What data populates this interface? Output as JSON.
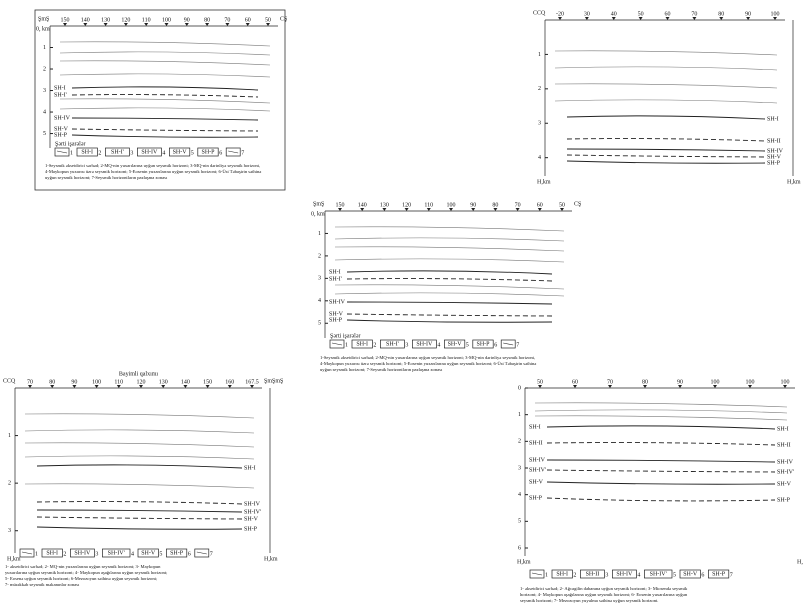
{
  "panels": [
    {
      "left_label": "ŞmŞ",
      "right_label": "CŞ",
      "depth_label": "0, km",
      "x_ticks": [
        "150",
        "140",
        "130",
        "120",
        "110",
        "100",
        "90",
        "80",
        "70",
        "60",
        "50"
      ],
      "depth_ticks": [
        "1",
        "2",
        "3",
        "4",
        "5"
      ],
      "horizons": [
        "SH-I",
        "SH-I'",
        "SH-IV",
        "SH-V",
        "SH-P"
      ],
      "legend_title": "Şərti işarələr",
      "legend": [
        {
          "num": "1"
        },
        {
          "box": "SH-I",
          "num": "2"
        },
        {
          "box": "SH-I'",
          "num": "3"
        },
        {
          "box": "SH-IV",
          "num": "4"
        },
        {
          "box": "SH-V",
          "num": "5"
        },
        {
          "box": "SH-P",
          "num": "6"
        },
        {
          "num": "7"
        }
      ],
      "caption": [
        "1-Seysmik əksetdirici sərhəd; 2-MQ-nin yuxarılarına uyğun seysmik horizont; 3-MQ-nin dərinliyə seysmik horizont,",
        "4-Maykopun yuxarısı üzrə seysmik horizont; 5-Eosenin yuxarılarına uyğun seysmik horizont; 6-Üst Təbaşirin səthinə",
        "uyğun seysmik horizont; 7-Seysmik horizontların pazlaşma zonası"
      ]
    },
    {
      "left_label": "CCQ",
      "bottom_label": "H,km",
      "x_ticks": [
        "-20",
        "30",
        "40",
        "50",
        "60",
        "70",
        "80",
        "90",
        "100"
      ],
      "depth_ticks": [
        "1",
        "2",
        "3",
        "4"
      ],
      "horizons": [
        "SH-I",
        "SH-II",
        "SH-IV",
        "SH-V",
        "SH-P"
      ]
    },
    {
      "left_label": "ŞmŞ",
      "right_label": "CŞ",
      "depth_label": "0, km",
      "x_ticks": [
        "150",
        "140",
        "130",
        "120",
        "110",
        "100",
        "90",
        "80",
        "70",
        "60",
        "50"
      ],
      "depth_ticks": [
        "1",
        "2",
        "3",
        "4",
        "5"
      ],
      "horizons": [
        "SH-I",
        "SH-I'",
        "SH-IV",
        "SH-V",
        "SH-P"
      ],
      "legend_title": "Şərti işarələr",
      "legend": [
        {
          "num": "1"
        },
        {
          "box": "SH-I",
          "num": "2"
        },
        {
          "box": "SH-I'",
          "num": "3"
        },
        {
          "box": "SH-IV",
          "num": "4"
        },
        {
          "box": "SH-V",
          "num": "5"
        },
        {
          "box": "SH-P",
          "num": "6"
        },
        {
          "num": "7"
        }
      ],
      "caption": [
        "1-Seysmik əksetdirici sərhəd; 2-MQ-nin yuxarılarına uyğun seysmik horizont; 3-MQ-nin dərinliyə seysmik horizont,",
        "4-Maykopun yuxarısı üzrə seysmik horizont; 5-Eosenin yuxarılarına uyğun seysmik horizont; 6-Üst Təbaşirin səthinə",
        "uyğun seysmik horizont; 7-Seysmik horizontların pazlaşma zonası"
      ]
    },
    {
      "left_label": "CCQ",
      "title": "Bayimli qalxımı",
      "right_label": "ŞmŞmŞ",
      "bottom_label": "H,km",
      "x_ticks": [
        "70",
        "80",
        "90",
        "100",
        "110",
        "120",
        "130",
        "140",
        "150",
        "160",
        "167.5"
      ],
      "depth_ticks": [
        "1",
        "2",
        "3"
      ],
      "horizons": [
        "SH-I",
        "SH-IV",
        "SH-IV'",
        "SH-V",
        "SH-P"
      ],
      "legend": [
        {
          "num": "1"
        },
        {
          "box": "SH-I",
          "num": "2"
        },
        {
          "box": "SH-IV",
          "num": "3"
        },
        {
          "box": "SH-IV'",
          "num": "4"
        },
        {
          "box": "SH-V",
          "num": "5"
        },
        {
          "box": "SH-P",
          "num": "6"
        },
        {
          "num": "7"
        }
      ],
      "caption": [
        "1- əksetdirici sərhəd; 2- MQ-nin yuxarılarına uyğun seysmik horizont; 3- Maykopun",
        "yuxarılarına uyğun seysmik horizont; 4- Maykopun aşağılarına uyğun seysmik horizont;",
        "5- Eosenə uyğun seysmik horizont; 6-Mezozoyun səthinə uyğun seysmik horizont;",
        "7- mürəkkəb seysmik məkanınlar zonası"
      ]
    },
    {
      "bottom_label": "H,km",
      "x_ticks": [
        "50",
        "60",
        "70",
        "80",
        "90",
        "100",
        "100",
        "100"
      ],
      "depth_ticks": [
        "0",
        "1",
        "2",
        "3",
        "4",
        "5",
        "6"
      ],
      "horizons": [
        "SH-I",
        "SH-II",
        "SH-IV",
        "SH-IV'",
        "SH-V",
        "SH-P"
      ],
      "legend": [
        {
          "num": "1"
        },
        {
          "box": "SH-I",
          "num": "2"
        },
        {
          "box": "SH-II",
          "num": "3"
        },
        {
          "box": "SH-IV",
          "num": "4"
        },
        {
          "box": "SH-IV'",
          "num": "5"
        },
        {
          "box": "SH-V",
          "num": "6"
        },
        {
          "box": "SH-P",
          "num": "7"
        }
      ],
      "caption": [
        "1- əksetdirici sərhəd; 2- Ağcagilin dabanına uyğun seysmik horizont; 3- Miosendə seysmik",
        "horizont; 4- Maykopun aşağılarına uyğun seysmik horizont; 6- Eosenin yuxarılarına uyğun",
        "seysmik horizont; 7- Mezozoyun yuyulma səthinə uyğun seysmik horizont."
      ]
    }
  ]
}
